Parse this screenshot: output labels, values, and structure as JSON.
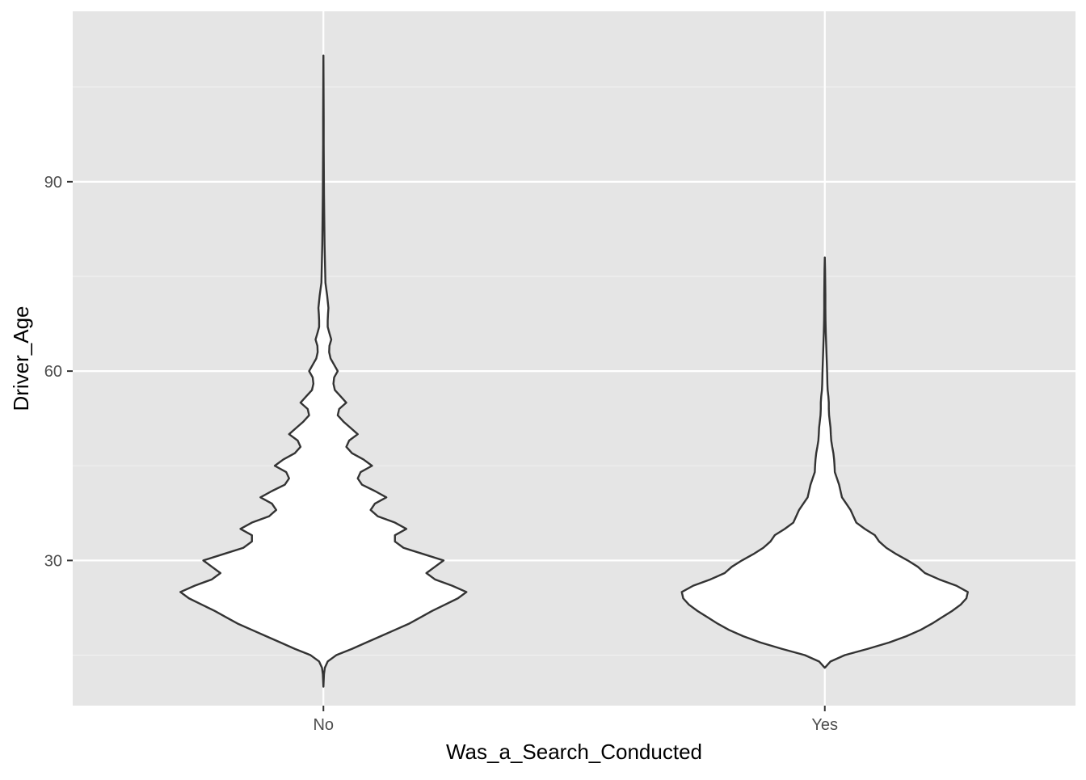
{
  "chart_data": {
    "type": "violin",
    "title": "",
    "xlabel": "Was_a_Search_Conducted",
    "ylabel": "Driver_Age",
    "categories": [
      "No",
      "Yes"
    ],
    "ylim": [
      7,
      117
    ],
    "yticks": [
      30,
      60,
      90
    ],
    "ytick_labels": [
      "30",
      "60",
      "90"
    ],
    "grid": true,
    "legend": "none",
    "colors": {
      "panel_background": "#e5e5e5",
      "grid_major": "#ffffff",
      "grid_minor": "#f2f2f2",
      "violin_fill": "#ffffff",
      "violin_outline": "#333333",
      "tick_text": "#4d4d4d"
    },
    "series": [
      {
        "category": "No",
        "min": 10,
        "max": 110,
        "density": [
          [
            10,
            0.0
          ],
          [
            12,
            0.004
          ],
          [
            13,
            0.01
          ],
          [
            14,
            0.03
          ],
          [
            15,
            0.09
          ],
          [
            16,
            0.2
          ],
          [
            17,
            0.3
          ],
          [
            18,
            0.4
          ],
          [
            19,
            0.5
          ],
          [
            20,
            0.6
          ],
          [
            21,
            0.68
          ],
          [
            22,
            0.76
          ],
          [
            23,
            0.85
          ],
          [
            24,
            0.94
          ],
          [
            25,
            1.0
          ],
          [
            26,
            0.9
          ],
          [
            27,
            0.78
          ],
          [
            28,
            0.72
          ],
          [
            29,
            0.78
          ],
          [
            30,
            0.84
          ],
          [
            31,
            0.7
          ],
          [
            32,
            0.56
          ],
          [
            33,
            0.5
          ],
          [
            34,
            0.5
          ],
          [
            35,
            0.58
          ],
          [
            36,
            0.5
          ],
          [
            37,
            0.38
          ],
          [
            38,
            0.33
          ],
          [
            39,
            0.36
          ],
          [
            40,
            0.44
          ],
          [
            41,
            0.36
          ],
          [
            42,
            0.27
          ],
          [
            43,
            0.24
          ],
          [
            44,
            0.26
          ],
          [
            45,
            0.34
          ],
          [
            46,
            0.28
          ],
          [
            47,
            0.2
          ],
          [
            48,
            0.16
          ],
          [
            49,
            0.18
          ],
          [
            50,
            0.24
          ],
          [
            51,
            0.19
          ],
          [
            52,
            0.14
          ],
          [
            53,
            0.1
          ],
          [
            54,
            0.11
          ],
          [
            55,
            0.16
          ],
          [
            56,
            0.12
          ],
          [
            57,
            0.08
          ],
          [
            58,
            0.07
          ],
          [
            59,
            0.075
          ],
          [
            60,
            0.1
          ],
          [
            61,
            0.075
          ],
          [
            62,
            0.05
          ],
          [
            63,
            0.04
          ],
          [
            64,
            0.042
          ],
          [
            65,
            0.055
          ],
          [
            66,
            0.042
          ],
          [
            67,
            0.03
          ],
          [
            68,
            0.03
          ],
          [
            69,
            0.032
          ],
          [
            70,
            0.035
          ],
          [
            72,
            0.026
          ],
          [
            74,
            0.014
          ],
          [
            76,
            0.012
          ],
          [
            78,
            0.01
          ],
          [
            80,
            0.008
          ],
          [
            84,
            0.006
          ],
          [
            88,
            0.004
          ],
          [
            92,
            0.003
          ],
          [
            96,
            0.002
          ],
          [
            100,
            0.002
          ],
          [
            105,
            0.001
          ],
          [
            110,
            0.0
          ]
        ]
      },
      {
        "category": "Yes",
        "min": 13,
        "max": 78,
        "density": [
          [
            13,
            0.0
          ],
          [
            14,
            0.04
          ],
          [
            15,
            0.14
          ],
          [
            16,
            0.3
          ],
          [
            17,
            0.45
          ],
          [
            18,
            0.57
          ],
          [
            19,
            0.67
          ],
          [
            20,
            0.75
          ],
          [
            21,
            0.82
          ],
          [
            22,
            0.89
          ],
          [
            23,
            0.95
          ],
          [
            24,
            0.99
          ],
          [
            25,
            1.0
          ],
          [
            26,
            0.92
          ],
          [
            27,
            0.8
          ],
          [
            28,
            0.7
          ],
          [
            29,
            0.65
          ],
          [
            30,
            0.58
          ],
          [
            31,
            0.5
          ],
          [
            32,
            0.43
          ],
          [
            33,
            0.38
          ],
          [
            34,
            0.35
          ],
          [
            35,
            0.28
          ],
          [
            36,
            0.22
          ],
          [
            37,
            0.2
          ],
          [
            38,
            0.18
          ],
          [
            39,
            0.15
          ],
          [
            40,
            0.12
          ],
          [
            41,
            0.11
          ],
          [
            42,
            0.1
          ],
          [
            43,
            0.085
          ],
          [
            44,
            0.07
          ],
          [
            45,
            0.068
          ],
          [
            46,
            0.065
          ],
          [
            47,
            0.06
          ],
          [
            48,
            0.052
          ],
          [
            49,
            0.045
          ],
          [
            50,
            0.042
          ],
          [
            51,
            0.04
          ],
          [
            52,
            0.035
          ],
          [
            53,
            0.03
          ],
          [
            54,
            0.028
          ],
          [
            55,
            0.028
          ],
          [
            56,
            0.025
          ],
          [
            57,
            0.02
          ],
          [
            58,
            0.018
          ],
          [
            59,
            0.017
          ],
          [
            60,
            0.016
          ],
          [
            62,
            0.013
          ],
          [
            64,
            0.01
          ],
          [
            66,
            0.007
          ],
          [
            68,
            0.005
          ],
          [
            70,
            0.004
          ],
          [
            72,
            0.004
          ],
          [
            74,
            0.003
          ],
          [
            76,
            0.002
          ],
          [
            78,
            0.0
          ]
        ]
      }
    ]
  }
}
